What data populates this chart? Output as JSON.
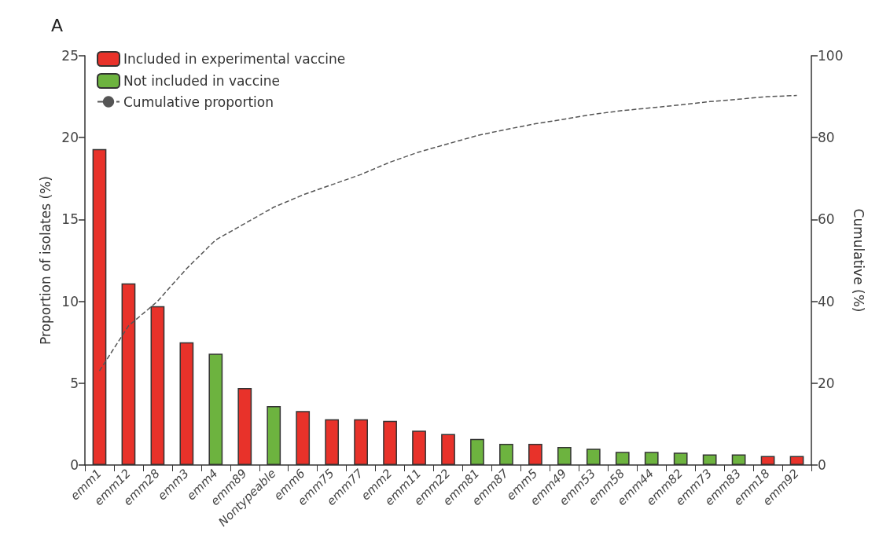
{
  "chart_data": {
    "type": "bar",
    "title": "A",
    "ylabel": "Proportion of isolates (%)",
    "y2label": "Cumulative (%)",
    "categories": [
      "emm1",
      "emm12",
      "emm28",
      "emm3",
      "emm4",
      "emm89",
      "Nontypeable",
      "emm6",
      "emm75",
      "emm77",
      "emm2",
      "emm11",
      "emm22",
      "emm81",
      "emm87",
      "emm5",
      "emm49",
      "emm53",
      "emm58",
      "emm44",
      "emm82",
      "emm73",
      "emm83",
      "emm18",
      "emm92"
    ],
    "series": [
      {
        "name": "Included in experimental vaccine",
        "color": "#e8322a",
        "values": [
          19.3,
          11.1,
          9.7,
          7.5,
          null,
          4.7,
          null,
          3.3,
          2.8,
          2.8,
          2.7,
          2.1,
          1.9,
          null,
          null,
          1.3,
          null,
          null,
          null,
          null,
          null,
          null,
          null,
          0.55,
          0.55
        ]
      },
      {
        "name": "Not included in vaccine",
        "color": "#6db33f",
        "values": [
          null,
          null,
          null,
          null,
          6.8,
          null,
          3.6,
          null,
          null,
          null,
          null,
          null,
          null,
          1.6,
          1.3,
          null,
          1.1,
          1.0,
          0.8,
          0.8,
          0.75,
          0.65,
          0.65,
          null,
          null
        ]
      },
      {
        "name": "Cumulative proportion",
        "type": "line",
        "axis": "y2",
        "color": "#555555",
        "line_style": "dashed",
        "marker": "none",
        "values": [
          23,
          34,
          40,
          48,
          55,
          59,
          63,
          66,
          68.5,
          71,
          74,
          76.5,
          78.5,
          80.5,
          82,
          83.4,
          84.5,
          85.7,
          86.6,
          87.3,
          88,
          88.8,
          89.4,
          90,
          90.3
        ]
      }
    ],
    "ylim": [
      0,
      25
    ],
    "yticks": [
      0,
      5,
      10,
      15,
      20,
      25
    ],
    "y2lim": [
      0,
      100
    ],
    "y2ticks": [
      0,
      20,
      40,
      60,
      80,
      100
    ],
    "grid": false,
    "legend": "top left"
  }
}
